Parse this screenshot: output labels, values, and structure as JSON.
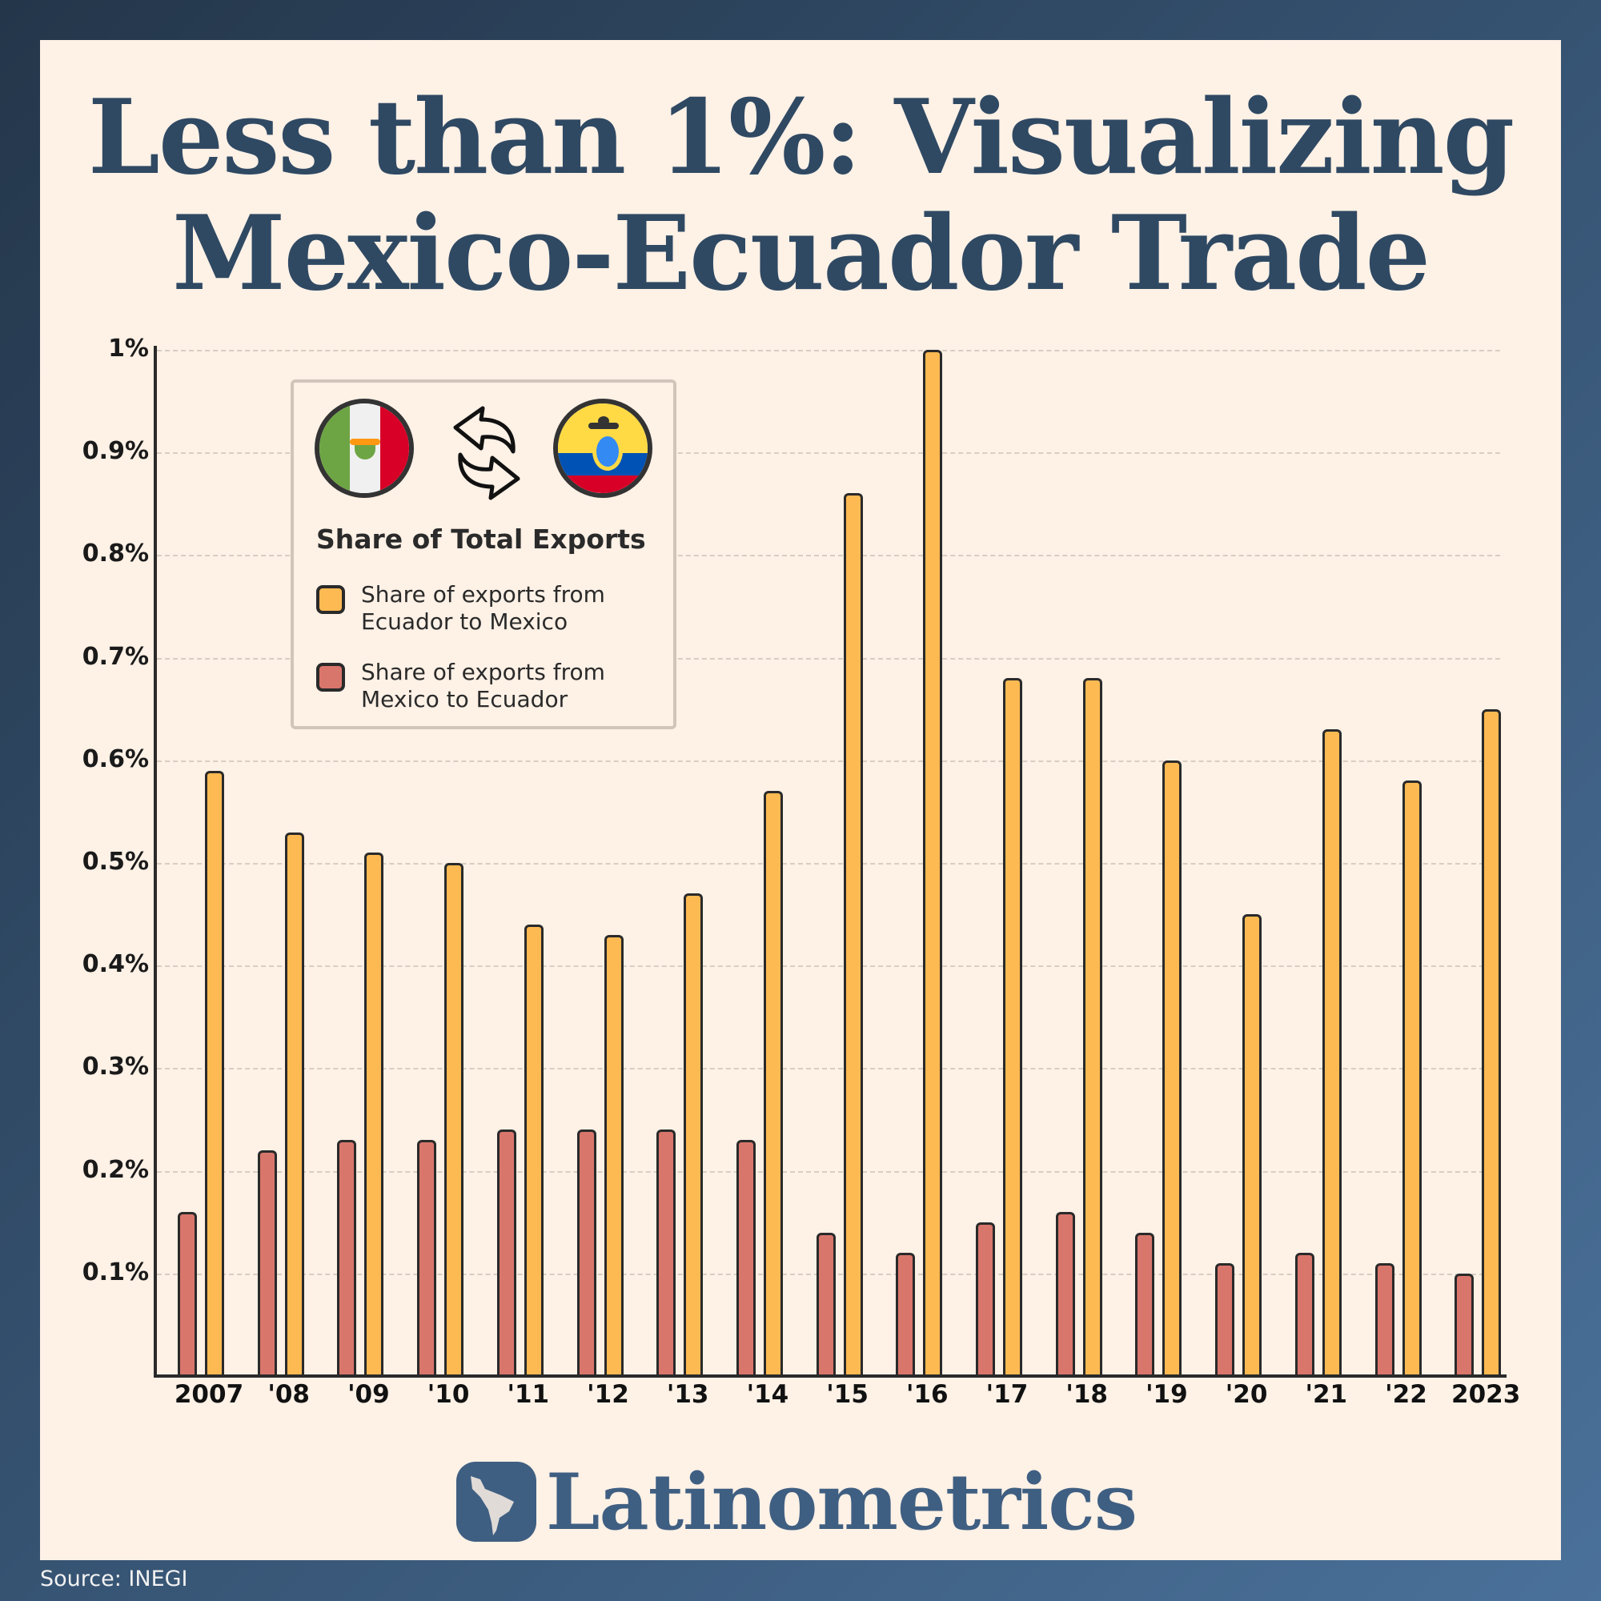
{
  "title": {
    "line1": "Less than 1%: Visualizing",
    "line2": "Mexico-Ecuador Trade"
  },
  "legend": {
    "title": "Share of Total Exports",
    "items": [
      {
        "label_line1": "Share of exports from",
        "label_line2": "Ecuador to Mexico",
        "color": "#fdba52"
      },
      {
        "label_line1": "Share of exports from",
        "label_line2": "Mexico to Ecuador",
        "color": "#d9766c"
      }
    ],
    "icons": [
      "mexico-flag-icon",
      "exchange-arrows-icon",
      "ecuador-flag-icon"
    ]
  },
  "y_ticks": [
    "1%",
    "0.9%",
    "0.8%",
    "0.7%",
    "0.6%",
    "0.5%",
    "0.4%",
    "0.3%",
    "0.2%",
    "0.1%"
  ],
  "x_ticks": [
    "2007",
    "'08",
    "'09",
    "'10",
    "'11",
    "'12",
    "'13",
    "'14",
    "'15",
    "'16",
    "'17",
    "'18",
    "'19",
    "'20",
    "'21",
    "'22",
    "2023"
  ],
  "brand": {
    "name": "Latinometrics"
  },
  "source": "Source: INEGI",
  "colors": {
    "ecuador_to_mexico": "#fdba52",
    "mexico_to_ecuador": "#d9766c",
    "title": "#2f4963",
    "background": "#fef1e6"
  },
  "chart_data": {
    "type": "bar",
    "title": "Less than 1%: Visualizing Mexico-Ecuador Trade",
    "subtitle": "Share of Total Exports",
    "xlabel": "",
    "ylabel": "",
    "ylim": [
      0,
      1.0
    ],
    "y_unit": "%",
    "grid": true,
    "legend_position": "upper-left inside",
    "categories": [
      "2007",
      "2008",
      "2009",
      "2010",
      "2011",
      "2012",
      "2013",
      "2014",
      "2015",
      "2016",
      "2017",
      "2018",
      "2019",
      "2020",
      "2021",
      "2022",
      "2023"
    ],
    "series": [
      {
        "name": "Share of exports from Mexico to Ecuador",
        "color": "#d9766c",
        "values": [
          0.16,
          0.22,
          0.23,
          0.23,
          0.24,
          0.24,
          0.24,
          0.23,
          0.14,
          0.12,
          0.15,
          0.16,
          0.14,
          0.11,
          0.12,
          0.11,
          0.1
        ]
      },
      {
        "name": "Share of exports from Ecuador to Mexico",
        "color": "#fdba52",
        "values": [
          0.59,
          0.53,
          0.51,
          0.5,
          0.44,
          0.43,
          0.47,
          0.57,
          0.86,
          1.0,
          0.68,
          0.68,
          0.6,
          0.45,
          0.63,
          0.58,
          0.65
        ]
      }
    ],
    "source": "INEGI"
  }
}
